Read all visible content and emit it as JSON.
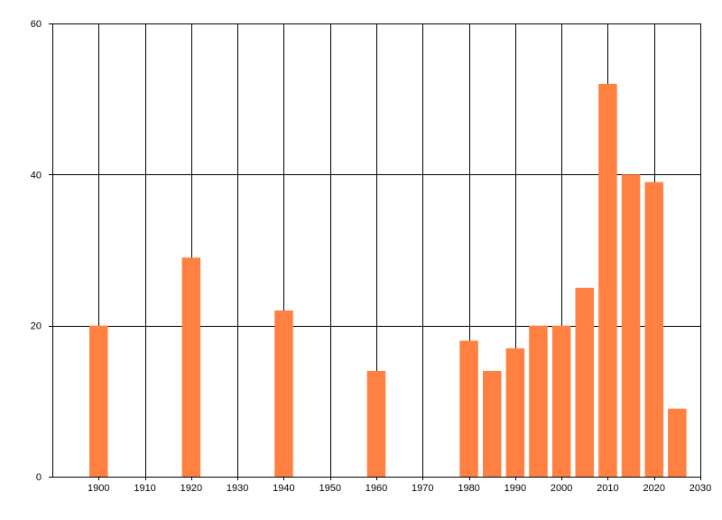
{
  "chart_data": {
    "type": "bar",
    "bar_color": "#ff8040",
    "grid_color": "#000000",
    "grid": true,
    "xlim": [
      1890,
      2030
    ],
    "ylim": [
      0,
      60
    ],
    "x_ticks": [
      1900,
      1910,
      1920,
      1930,
      1940,
      1950,
      1960,
      1970,
      1980,
      1990,
      2000,
      2010,
      2020,
      2030
    ],
    "y_ticks": [
      0,
      20,
      40,
      60
    ],
    "bar_width": 4,
    "x": [
      1900,
      1920,
      1940,
      1960,
      1980,
      1985,
      1990,
      1995,
      2000,
      2005,
      2010,
      2015,
      2020,
      2025
    ],
    "values": [
      20,
      29,
      22,
      14,
      18,
      14,
      17,
      20,
      20,
      25,
      52,
      40,
      39,
      9
    ]
  }
}
